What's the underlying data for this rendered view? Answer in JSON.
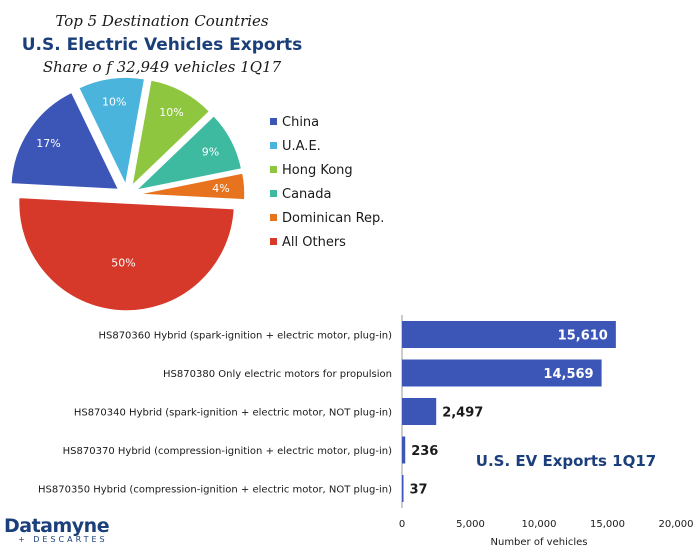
{
  "chart_data": [
    {
      "type": "pie",
      "title": "U.S. Electric Vehicles Exports",
      "subtitle_top": "Top 5 Destination Countries",
      "subtitle_bottom": "Share o f 32,949 vehicles 1Q17",
      "slices": [
        {
          "label": "China",
          "value": 17,
          "display": "17%",
          "color": "#3c56b8"
        },
        {
          "label": "U.A.E.",
          "value": 10,
          "display": "10%",
          "color": "#4ab4dc"
        },
        {
          "label": "Hong Kong",
          "value": 10,
          "display": "10%",
          "color": "#8fc63f"
        },
        {
          "label": "Canada",
          "value": 9,
          "display": "9%",
          "color": "#3dbaa0"
        },
        {
          "label": "Dominican Rep.",
          "value": 4,
          "display": "4%",
          "color": "#e7731e"
        },
        {
          "label": "All Others",
          "value": 50,
          "display": "50%",
          "color": "#d6392a"
        }
      ],
      "legend_position": "right"
    },
    {
      "type": "bar",
      "orientation": "horizontal",
      "title": "U.S. EV Exports 1Q17",
      "categories": [
        "HS870360 Hybrid (spark-ignition + electric motor, plug-in)",
        "HS870380 Only electric motors for propulsion",
        "HS870340 Hybrid (spark-ignition + electric motor, NOT plug-in)",
        "HS870370 Hybrid (compression-ignition + electric motor, plug-in)",
        "HS870350 Hybrid (compression-ignition + electric motor, NOT plug-in)"
      ],
      "values": [
        15610,
        14569,
        2497,
        236,
        37
      ],
      "value_labels": [
        "15,610",
        "14,569",
        "2,497",
        "236",
        "37"
      ],
      "xlabel": "Number of vehicles",
      "xlim": [
        0,
        20000
      ],
      "xticks": [
        0,
        5000,
        10000,
        15000,
        20000
      ],
      "xtick_labels": [
        "0",
        "5,000",
        "10,000",
        "15,000",
        "20,000"
      ],
      "bar_color": "#3c56b8",
      "grid": false
    }
  ],
  "logo": {
    "main": "Datamyne",
    "sub": "+ DESCARTES"
  }
}
